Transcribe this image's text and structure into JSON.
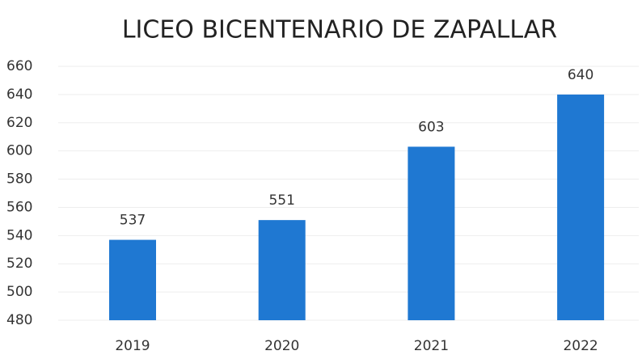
{
  "chart_data": {
    "type": "bar",
    "title": "LICEO BICENTENARIO DE ZAPALLAR",
    "categories": [
      "2019",
      "2020",
      "2021",
      "2022"
    ],
    "values": [
      537,
      551,
      603,
      640
    ],
    "color": "#1f78d2",
    "ylim": [
      480,
      660
    ],
    "yticks": [
      480,
      500,
      520,
      540,
      560,
      580,
      600,
      620,
      640,
      660
    ],
    "grid": true
  }
}
